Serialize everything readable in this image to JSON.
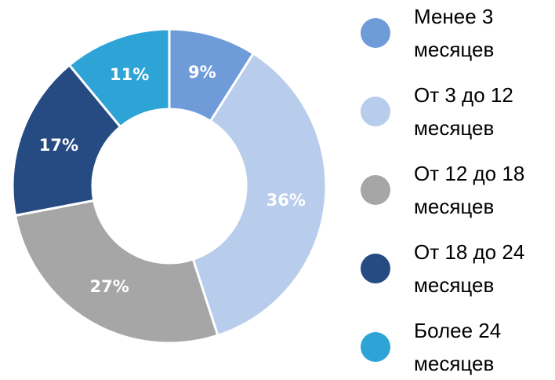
{
  "chart_data": {
    "type": "pie",
    "donut": true,
    "categories": [
      "Менее 3 месяцев",
      "От 3 до 12 месяцев",
      "От 12 до 18 месяцев",
      "От 18 до 24 месяцев",
      "Более 24 месяцев"
    ],
    "values": [
      9,
      36,
      27,
      17,
      11
    ],
    "value_labels": [
      "9%",
      "36%",
      "27%",
      "17%",
      "11%"
    ],
    "colors": [
      "#6f9bd8",
      "#b8ccec",
      "#a6a6a6",
      "#264b82",
      "#2ea3d6"
    ],
    "legend": "right"
  }
}
